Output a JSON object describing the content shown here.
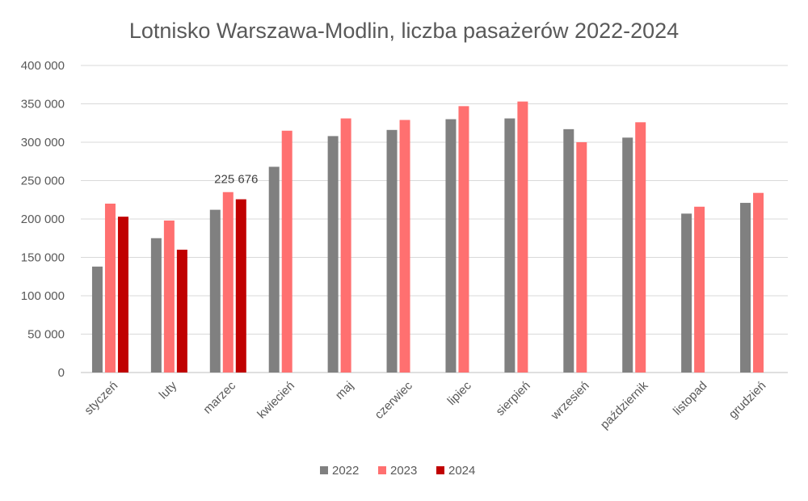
{
  "chart_data": {
    "type": "bar",
    "title": "Lotnisko Warszawa-Modlin, liczba pasażerów 2022-2024",
    "categories": [
      "styczeń",
      "luty",
      "marzec",
      "kwiecień",
      "maj",
      "czerwiec",
      "lipiec",
      "sierpień",
      "wrzesień",
      "październik",
      "listopad",
      "grudzień"
    ],
    "series": [
      {
        "name": "2022",
        "color": "#808080",
        "values": [
          138000,
          175000,
          212000,
          268000,
          308000,
          316000,
          330000,
          331000,
          317000,
          306000,
          207000,
          221000
        ]
      },
      {
        "name": "2023",
        "color": "#ff7070",
        "values": [
          220000,
          198000,
          235000,
          315000,
          331000,
          329000,
          347000,
          353000,
          300000,
          326000,
          216000,
          234000
        ]
      },
      {
        "name": "2024",
        "color": "#c00000",
        "values": [
          203000,
          160000,
          225676,
          null,
          null,
          null,
          null,
          null,
          null,
          null,
          null,
          null
        ]
      }
    ],
    "ylim": [
      0,
      400000
    ],
    "yticks": [
      0,
      50000,
      100000,
      150000,
      200000,
      250000,
      300000,
      350000,
      400000
    ],
    "ytick_labels": [
      "0",
      "50 000",
      "100 000",
      "150 000",
      "200 000",
      "250 000",
      "300 000",
      "350 000",
      "400 000"
    ],
    "data_labels": [
      {
        "series": 2,
        "category": 2,
        "text": "225 676"
      }
    ],
    "legend_position": "bottom",
    "grid": true,
    "xlabel": "",
    "ylabel": ""
  }
}
